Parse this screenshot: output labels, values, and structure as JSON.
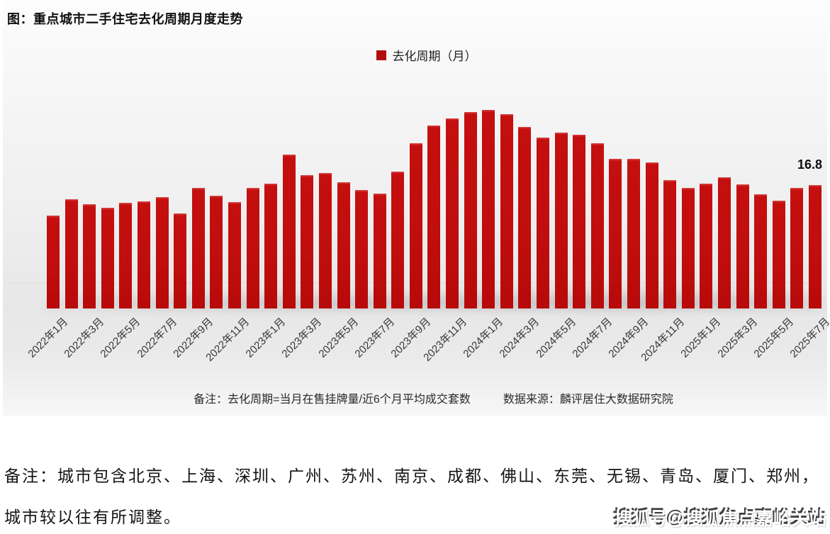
{
  "page": {
    "title": "图：重点城市二手住宅去化周期月度走势",
    "watermark": "搜狐号@搜狐焦点嘉峪关站"
  },
  "legend": {
    "label": "去化周期（月）",
    "marker_color": "#b30e0e"
  },
  "chart_data": {
    "type": "bar",
    "title": "图：重点城市二手住宅去化周期月度走势",
    "series_name": "去化周期（月）",
    "unit": "月",
    "bar_color": "#c00d0d",
    "grid": false,
    "y_axis_visible": false,
    "legend_position": "top-center",
    "x_tick_every": 2,
    "categories": [
      "2022年1月",
      "2022年2月",
      "2022年3月",
      "2022年4月",
      "2022年5月",
      "2022年6月",
      "2022年7月",
      "2022年8月",
      "2022年9月",
      "2022年10月",
      "2022年11月",
      "2022年12月",
      "2023年1月",
      "2023年2月",
      "2023年3月",
      "2023年4月",
      "2023年5月",
      "2023年6月",
      "2023年7月",
      "2023年8月",
      "2023年9月",
      "2023年10月",
      "2023年11月",
      "2023年12月",
      "2024年1月",
      "2024年2月",
      "2024年3月",
      "2024年4月",
      "2024年5月",
      "2024年6月",
      "2024年7月",
      "2024年8月",
      "2024年9月",
      "2024年10月",
      "2024年11月",
      "2024年12月",
      "2025年1月",
      "2025年2月",
      "2025年3月",
      "2025年4月",
      "2025年5月",
      "2025年6月",
      "2025年7月"
    ],
    "values": [
      12.7,
      14.9,
      14.2,
      13.7,
      14.4,
      14.6,
      15.2,
      13.0,
      16.4,
      15.4,
      14.5,
      16.4,
      17.0,
      21.0,
      18.2,
      18.5,
      17.2,
      16.2,
      15.7,
      18.7,
      22.5,
      25.0,
      25.9,
      26.8,
      27.1,
      26.5,
      24.8,
      23.3,
      24.0,
      23.7,
      22.5,
      20.4,
      20.4,
      19.9,
      17.5,
      16.4,
      17.0,
      17.9,
      16.9,
      15.6,
      14.7,
      16.4,
      16.8
    ],
    "annotation": {
      "text": "16.8",
      "category": "2025年7月"
    }
  },
  "footnote": {
    "note": "备注：去化周期=当月在售挂牌量/近6个月平均成交套数",
    "source": "数据来源：麟评居住大数据研究院"
  },
  "bottom_note": {
    "line1": "备注：城市包含北京、上海、深圳、广州、苏州、南京、成都、佛山、东莞、无锡、青岛、厦门、郑州，",
    "line2": "城市较以往有所调整。"
  }
}
